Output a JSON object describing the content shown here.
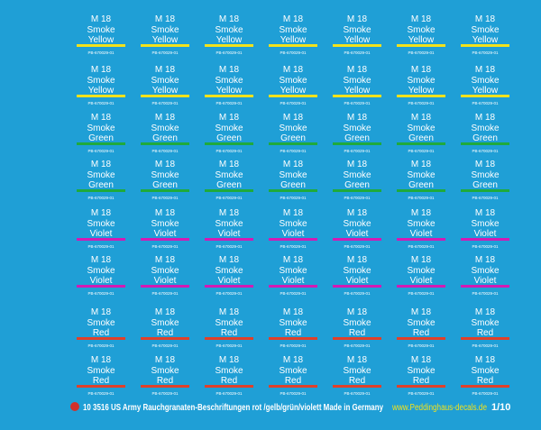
{
  "decal_rows": [
    {
      "bar_color": "#f2e21c",
      "cells": [
        {
          "model": "M 18",
          "label": "Smoke",
          "color_name": "Yellow",
          "code": "PB-670029-01"
        },
        {
          "model": "M 18",
          "label": "Smoke",
          "color_name": "Yellow",
          "code": "PB-670029-01"
        },
        {
          "model": "M 18",
          "label": "Smoke",
          "color_name": "Yellow",
          "code": "PB-670029-01"
        },
        {
          "model": "M 18",
          "label": "Smoke",
          "color_name": "Yellow",
          "code": "PB-670029-01"
        },
        {
          "model": "M 18",
          "label": "Smoke",
          "color_name": "Yellow",
          "code": "PB-670029-01"
        },
        {
          "model": "M 18",
          "label": "Smoke",
          "color_name": "Yellow",
          "code": "PB-670029-01"
        },
        {
          "model": "M 18",
          "label": "Smoke",
          "color_name": "Yellow",
          "code": "PB-670029-01"
        }
      ]
    },
    {
      "bar_color": "#f2e21c",
      "cells": [
        {
          "model": "M 18",
          "label": "Smoke",
          "color_name": "Yellow",
          "code": "PB-670029-01"
        },
        {
          "model": "M 18",
          "label": "Smoke",
          "color_name": "Yellow",
          "code": "PB-670029-01"
        },
        {
          "model": "M 18",
          "label": "Smoke",
          "color_name": "Yellow",
          "code": "PB-670029-01"
        },
        {
          "model": "M 18",
          "label": "Smoke",
          "color_name": "Yellow",
          "code": "PB-670029-01"
        },
        {
          "model": "M 18",
          "label": "Smoke",
          "color_name": "Yellow",
          "code": "PB-670029-01"
        },
        {
          "model": "M 18",
          "label": "Smoke",
          "color_name": "Yellow",
          "code": "PB-670029-01"
        },
        {
          "model": "M 18",
          "label": "Smoke",
          "color_name": "Yellow",
          "code": "PB-670029-01"
        }
      ]
    },
    {
      "bar_color": "#1faa3c",
      "cells": [
        {
          "model": "M 18",
          "label": "Smoke",
          "color_name": "Green",
          "code": "PB-670029-01"
        },
        {
          "model": "M 18",
          "label": "Smoke",
          "color_name": "Green",
          "code": "PB-670029-01"
        },
        {
          "model": "M 18",
          "label": "Smoke",
          "color_name": "Green",
          "code": "PB-670029-01"
        },
        {
          "model": "M 18",
          "label": "Smoke",
          "color_name": "Green",
          "code": "PB-670029-01"
        },
        {
          "model": "M 18",
          "label": "Smoke",
          "color_name": "Green",
          "code": "PB-670029-01"
        },
        {
          "model": "M 18",
          "label": "Smoke",
          "color_name": "Green",
          "code": "PB-670029-01"
        },
        {
          "model": "M 18",
          "label": "Smoke",
          "color_name": "Green",
          "code": "PB-670029-01"
        }
      ]
    },
    {
      "bar_color": "#1faa3c",
      "cells": [
        {
          "model": "M 18",
          "label": "Smoke",
          "color_name": "Green",
          "code": "PB-670029-01"
        },
        {
          "model": "M 18",
          "label": "Smoke",
          "color_name": "Green",
          "code": "PB-670029-01"
        },
        {
          "model": "M 18",
          "label": "Smoke",
          "color_name": "Green",
          "code": "PB-670029-01"
        },
        {
          "model": "M 18",
          "label": "Smoke",
          "color_name": "Green",
          "code": "PB-670029-01"
        },
        {
          "model": "M 18",
          "label": "Smoke",
          "color_name": "Green",
          "code": "PB-670029-01"
        },
        {
          "model": "M 18",
          "label": "Smoke",
          "color_name": "Green",
          "code": "PB-670029-01"
        },
        {
          "model": "M 18",
          "label": "Smoke",
          "color_name": "Green",
          "code": "PB-670029-01"
        }
      ]
    },
    {
      "bar_color": "#d21ab4",
      "cells": [
        {
          "model": "M 18",
          "label": "Smoke",
          "color_name": "Violet",
          "code": "PB-670029-01"
        },
        {
          "model": "M 18",
          "label": "Smoke",
          "color_name": "Violet",
          "code": "PB-670029-01"
        },
        {
          "model": "M 18",
          "label": "Smoke",
          "color_name": "Violet",
          "code": "PB-670029-01"
        },
        {
          "model": "M 18",
          "label": "Smoke",
          "color_name": "Violet",
          "code": "PB-670029-01"
        },
        {
          "model": "M 18",
          "label": "Smoke",
          "color_name": "Violet",
          "code": "PB-670029-01"
        },
        {
          "model": "M 18",
          "label": "Smoke",
          "color_name": "Violet",
          "code": "PB-670029-01"
        },
        {
          "model": "M 18",
          "label": "Smoke",
          "color_name": "Violet",
          "code": "PB-670029-01"
        }
      ]
    },
    {
      "bar_color": "#d21ab4",
      "cells": [
        {
          "model": "M 18",
          "label": "Smoke",
          "color_name": "Violet",
          "code": "PB-670029-01"
        },
        {
          "model": "M 18",
          "label": "Smoke",
          "color_name": "Violet",
          "code": "PB-670029-01"
        },
        {
          "model": "M 18",
          "label": "Smoke",
          "color_name": "Violet",
          "code": "PB-670029-01"
        },
        {
          "model": "M 18",
          "label": "Smoke",
          "color_name": "Violet",
          "code": "PB-670029-01"
        },
        {
          "model": "M 18",
          "label": "Smoke",
          "color_name": "Violet",
          "code": "PB-670029-01"
        },
        {
          "model": "M 18",
          "label": "Smoke",
          "color_name": "Violet",
          "code": "PB-670029-01"
        },
        {
          "model": "M 18",
          "label": "Smoke",
          "color_name": "Violet",
          "code": "PB-670029-01"
        }
      ]
    },
    {
      "bar_color": "#e0402a",
      "cells": [
        {
          "model": "M 18",
          "label": "Smoke",
          "color_name": "Red",
          "code": "PB-670029-01"
        },
        {
          "model": "M 18",
          "label": "Smoke",
          "color_name": "Red",
          "code": "PB-670029-01"
        },
        {
          "model": "M 18",
          "label": "Smoke",
          "color_name": "Red",
          "code": "PB-670029-01"
        },
        {
          "model": "M 18",
          "label": "Smoke",
          "color_name": "Red",
          "code": "PB-670029-01"
        },
        {
          "model": "M 18",
          "label": "Smoke",
          "color_name": "Red",
          "code": "PB-670029-01"
        },
        {
          "model": "M 18",
          "label": "Smoke",
          "color_name": "Red",
          "code": "PB-670029-01"
        },
        {
          "model": "M 18",
          "label": "Smoke",
          "color_name": "Red",
          "code": "PB-670029-01"
        }
      ]
    },
    {
      "bar_color": "#e0402a",
      "cells": [
        {
          "model": "M 18",
          "label": "Smoke",
          "color_name": "Red",
          "code": "PB-670029-01"
        },
        {
          "model": "M 18",
          "label": "Smoke",
          "color_name": "Red",
          "code": "PB-670029-01"
        },
        {
          "model": "M 18",
          "label": "Smoke",
          "color_name": "Red",
          "code": "PB-670029-01"
        },
        {
          "model": "M 18",
          "label": "Smoke",
          "color_name": "Red",
          "code": "PB-670029-01"
        },
        {
          "model": "M 18",
          "label": "Smoke",
          "color_name": "Red",
          "code": "PB-670029-01"
        },
        {
          "model": "M 18",
          "label": "Smoke",
          "color_name": "Red",
          "code": "PB-670029-01"
        },
        {
          "model": "M 18",
          "label": "Smoke",
          "color_name": "Red",
          "code": "PB-670029-01"
        }
      ]
    }
  ],
  "footer": {
    "product": "10 3516 US Army Rauchgranaten-Beschriftungen rot /gelb/grün/violett  Made in Germany",
    "website": "www.Peddinghaus-decals.de",
    "scale": "1/10"
  }
}
